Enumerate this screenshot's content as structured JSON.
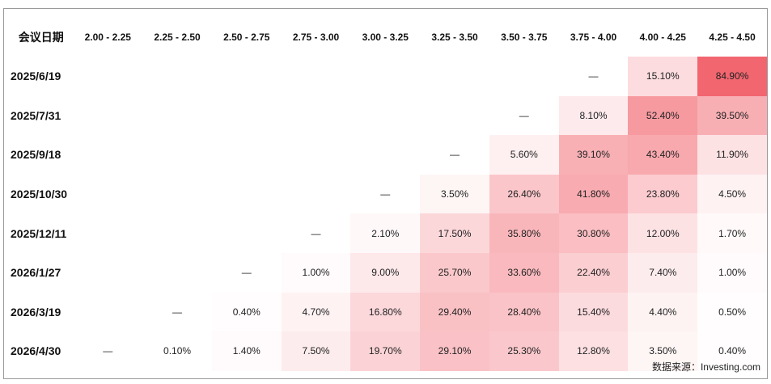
{
  "chart_data": {
    "type": "heatmap",
    "corner_label": "会议日期",
    "columns": [
      "2.00 - 2.25",
      "2.25 - 2.50",
      "2.50 - 2.75",
      "2.75 - 3.00",
      "3.00 - 3.25",
      "3.25 - 3.50",
      "3.50 - 3.75",
      "3.75 - 4.00",
      "4.00 - 4.25",
      "4.25 - 4.50"
    ],
    "rows": [
      {
        "date": "2025/6/19",
        "cells": [
          "",
          "",
          "",
          "",
          "",
          "",
          "",
          "—",
          "15.10%",
          "84.90%"
        ]
      },
      {
        "date": "2025/7/31",
        "cells": [
          "",
          "",
          "",
          "",
          "",
          "",
          "—",
          "8.10%",
          "52.40%",
          "39.50%"
        ]
      },
      {
        "date": "2025/9/18",
        "cells": [
          "",
          "",
          "",
          "",
          "",
          "—",
          "5.60%",
          "39.10%",
          "43.40%",
          "11.90%"
        ]
      },
      {
        "date": "2025/10/30",
        "cells": [
          "",
          "",
          "",
          "",
          "—",
          "3.50%",
          "26.40%",
          "41.80%",
          "23.80%",
          "4.50%"
        ]
      },
      {
        "date": "2025/12/11",
        "cells": [
          "",
          "",
          "",
          "—",
          "2.10%",
          "17.50%",
          "35.80%",
          "30.80%",
          "12.00%",
          "1.70%"
        ]
      },
      {
        "date": "2026/1/27",
        "cells": [
          "",
          "",
          "—",
          "1.00%",
          "9.00%",
          "25.70%",
          "33.60%",
          "22.40%",
          "7.40%",
          "1.00%"
        ]
      },
      {
        "date": "2026/3/19",
        "cells": [
          "",
          "—",
          "0.40%",
          "4.70%",
          "16.80%",
          "29.40%",
          "28.40%",
          "15.40%",
          "4.40%",
          "0.50%"
        ]
      },
      {
        "date": "2026/4/30",
        "cells": [
          "—",
          "0.10%",
          "1.40%",
          "7.50%",
          "19.70%",
          "29.10%",
          "25.30%",
          "12.80%",
          "3.50%",
          "0.40%"
        ]
      }
    ],
    "color_scale": {
      "low": "#ffffff",
      "high": "#f26670"
    }
  },
  "source": "数据来源：Investing.com"
}
